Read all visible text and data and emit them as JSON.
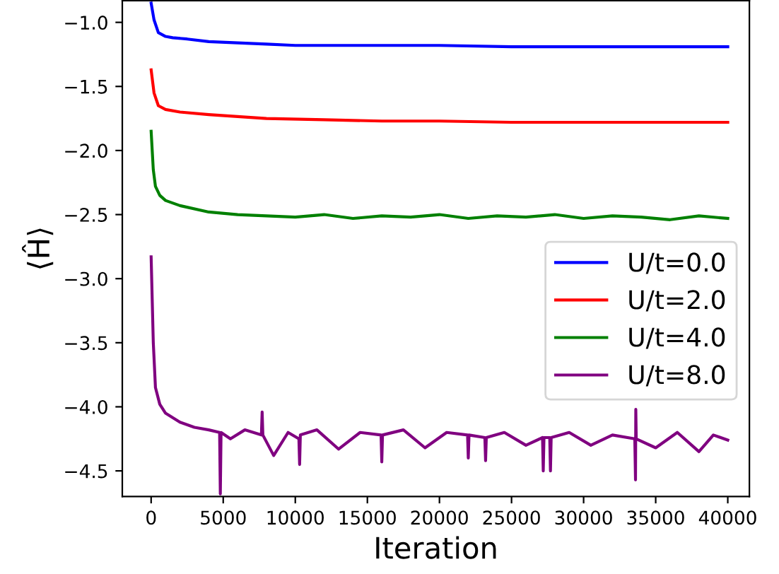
{
  "chart_data": {
    "type": "line",
    "xlabel": "Iteration",
    "ylabel": "⟨Ĥ⟩",
    "xlim": [
      -2000,
      41500
    ],
    "ylim": [
      -4.7,
      -0.83
    ],
    "xticks": [
      0,
      5000,
      10000,
      15000,
      20000,
      25000,
      30000,
      35000,
      40000
    ],
    "yticks": [
      -4.5,
      {
        "value": -4,
        "label": "−4.0"
      },
      -3.5,
      {
        "value": -3,
        "label": "−3.0"
      },
      -2.5,
      {
        "value": -2,
        "label": "−2.0"
      },
      -1.5,
      {
        "value": -1,
        "label": "−1.0"
      }
    ],
    "legend": "lower right",
    "grid": false,
    "marker": "none",
    "line_style": "solid",
    "series": [
      {
        "name": "U/t=0.0",
        "color": "#0000ff",
        "x": [
          0,
          200,
          500,
          1000,
          1500,
          2500,
          4000,
          6000,
          8000,
          10000,
          15000,
          20000,
          25000,
          30000,
          35000,
          40000
        ],
        "values": [
          -0.85,
          -0.98,
          -1.08,
          -1.11,
          -1.12,
          -1.13,
          -1.15,
          -1.16,
          -1.17,
          -1.18,
          -1.18,
          -1.18,
          -1.19,
          -1.19,
          -1.19,
          -1.19
        ]
      },
      {
        "name": "U/t=2.0",
        "color": "#ff0000",
        "x": [
          0,
          200,
          500,
          1000,
          2000,
          4000,
          8000,
          12000,
          16000,
          20000,
          25000,
          30000,
          35000,
          40000
        ],
        "values": [
          -1.37,
          -1.55,
          -1.65,
          -1.68,
          -1.7,
          -1.72,
          -1.75,
          -1.76,
          -1.77,
          -1.77,
          -1.78,
          -1.78,
          -1.78,
          -1.78
        ]
      },
      {
        "name": "U/t=4.0",
        "color": "#008000",
        "x": [
          0,
          150,
          300,
          600,
          1000,
          2000,
          4000,
          6000,
          8000,
          10000,
          12000,
          14000,
          16000,
          18000,
          20000,
          22000,
          24000,
          26000,
          28000,
          30000,
          32000,
          34000,
          36000,
          38000,
          40000
        ],
        "values": [
          -1.85,
          -2.15,
          -2.28,
          -2.35,
          -2.39,
          -2.43,
          -2.48,
          -2.5,
          -2.51,
          -2.52,
          -2.5,
          -2.53,
          -2.51,
          -2.52,
          -2.5,
          -2.53,
          -2.51,
          -2.52,
          -2.5,
          -2.53,
          -2.51,
          -2.52,
          -2.54,
          -2.51,
          -2.53
        ]
      },
      {
        "name": "U/t=8.0",
        "color": "#800080",
        "x": [
          0,
          150,
          300,
          600,
          1000,
          2000,
          3000,
          4000,
          4750,
          4800,
          4850,
          5500,
          6500,
          7650,
          7700,
          7750,
          8500,
          9500,
          10250,
          10300,
          10350,
          11500,
          13000,
          14500,
          15950,
          16000,
          16050,
          17500,
          19000,
          20500,
          21950,
          22000,
          22050,
          23150,
          23200,
          23250,
          24500,
          26000,
          27150,
          27200,
          27250,
          27650,
          27700,
          27750,
          29000,
          30500,
          32000,
          33550,
          33600,
          33620,
          33650,
          35000,
          36500,
          38000,
          39000,
          40000
        ],
        "values": [
          -2.83,
          -3.5,
          -3.85,
          -3.98,
          -4.05,
          -4.12,
          -4.16,
          -4.18,
          -4.2,
          -4.68,
          -4.2,
          -4.25,
          -4.18,
          -4.22,
          -4.04,
          -4.22,
          -4.38,
          -4.2,
          -4.25,
          -4.45,
          -4.22,
          -4.18,
          -4.33,
          -4.2,
          -4.22,
          -4.43,
          -4.22,
          -4.18,
          -4.32,
          -4.2,
          -4.22,
          -4.4,
          -4.22,
          -4.24,
          -4.42,
          -4.24,
          -4.2,
          -4.3,
          -4.24,
          -4.5,
          -4.24,
          -4.24,
          -4.5,
          -4.24,
          -4.2,
          -4.3,
          -4.22,
          -4.25,
          -4.57,
          -4.02,
          -4.25,
          -4.32,
          -4.2,
          -4.35,
          -4.22,
          -4.26
        ]
      }
    ]
  }
}
